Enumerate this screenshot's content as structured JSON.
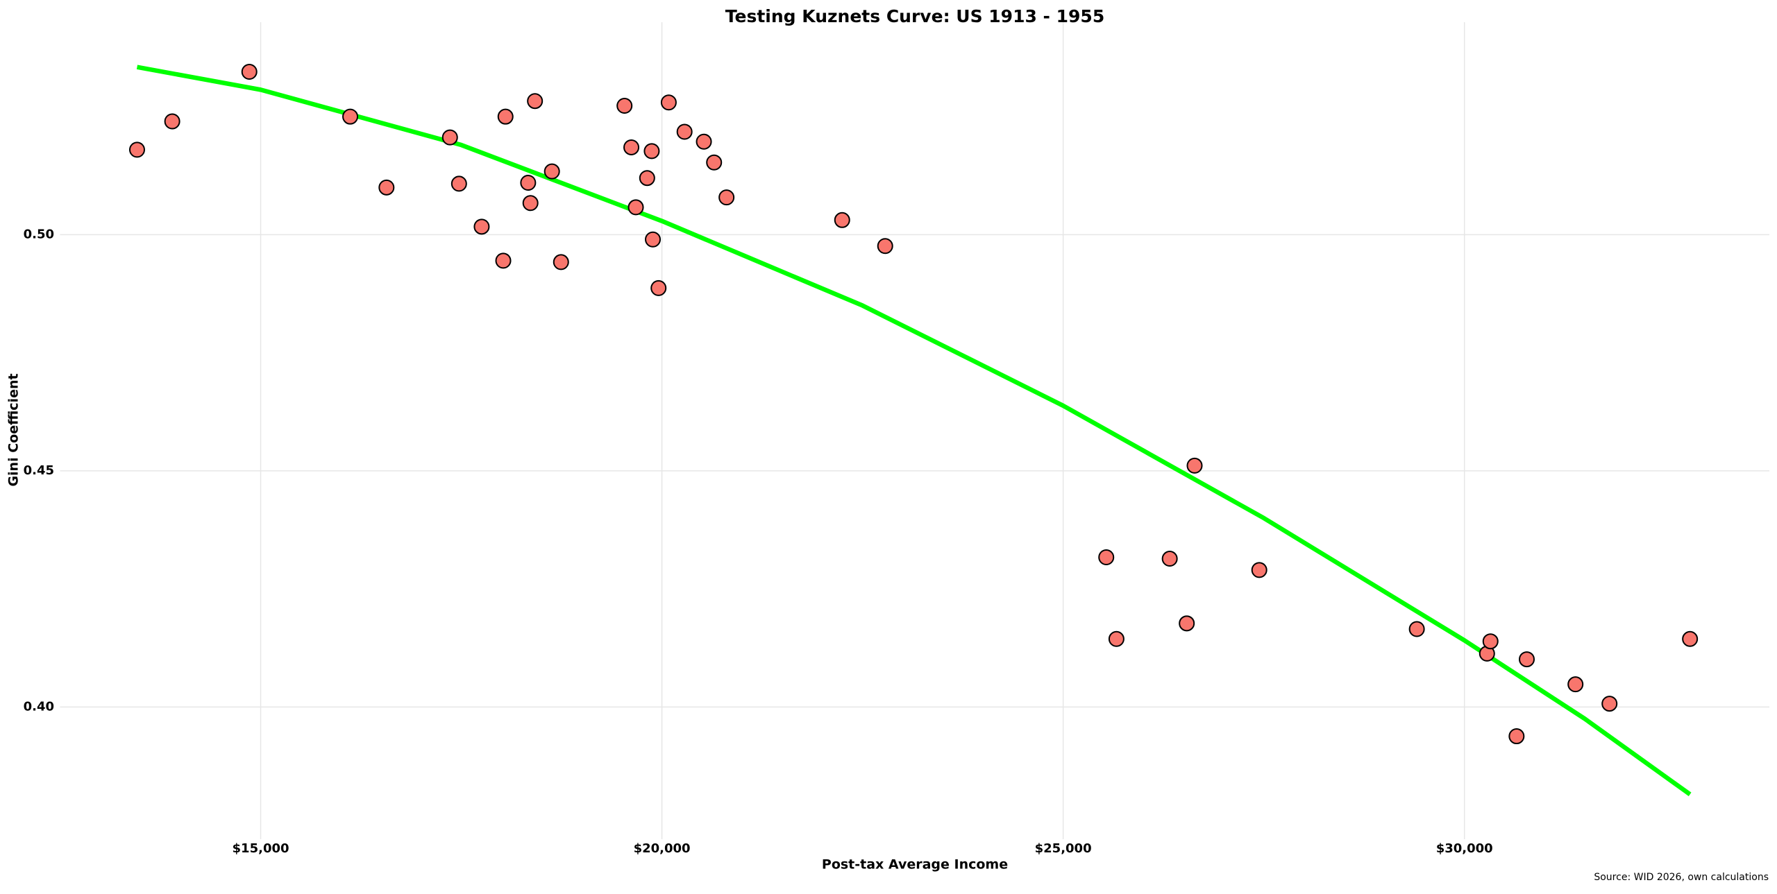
{
  "chart_data": {
    "type": "scatter",
    "title": "Testing Kuznets Curve: US 1913 - 1955",
    "x_label": "Post-tax Average Income",
    "y_label": "Gini Coefficient",
    "source": "Source: WID 2026, own calculations",
    "xlim": [
      12500,
      33800
    ],
    "ylim": [
      0.372,
      0.545
    ],
    "xticks": [
      {
        "value": 15000,
        "label": "$15,000"
      },
      {
        "value": 20000,
        "label": "$20,000"
      },
      {
        "value": 25000,
        "label": "$25,000"
      },
      {
        "value": 30000,
        "label": "$30,000"
      }
    ],
    "yticks": [
      {
        "value": 0.4,
        "label": "0.40"
      },
      {
        "value": 0.45,
        "label": "0.45"
      },
      {
        "value": 0.5,
        "label": "0.50"
      }
    ],
    "grid": true,
    "series": [
      {
        "type": "scatter",
        "color": "#f8766d",
        "x": [
          13460,
          13898,
          14859,
          16116,
          16568,
          17359,
          17472,
          17754,
          18023,
          18051,
          18333,
          18362,
          18418,
          18630,
          18743,
          19534,
          19619,
          19675,
          19816,
          19873,
          19887,
          19958,
          20085,
          20282,
          20523,
          20650,
          20805,
          22246,
          22782,
          25537,
          25664,
          26328,
          26540,
          26638,
          27444,
          29407,
          30282,
          30325,
          30650,
          30777,
          31384,
          31808,
          32811
        ],
        "values": [
          0.518,
          0.524,
          0.5345,
          0.525,
          0.51,
          0.5206,
          0.5108,
          0.5017,
          0.4945,
          0.525,
          0.511,
          0.5067,
          0.5283,
          0.5134,
          0.4942,
          0.5273,
          0.5185,
          0.5058,
          0.512,
          0.5177,
          0.499,
          0.4887,
          0.528,
          0.5218,
          0.5197,
          0.5153,
          0.5079,
          0.5031,
          0.4976,
          0.4317,
          0.4144,
          0.4314,
          0.4177,
          0.4511,
          0.429,
          0.4165,
          0.4113,
          0.4139,
          0.3938,
          0.4101,
          0.4048,
          0.4007,
          0.4144
        ]
      },
      {
        "type": "line",
        "color": "#00ff00",
        "x": [
          13460,
          15000,
          17500,
          20000,
          22500,
          25000,
          27500,
          30000,
          31500,
          32811
        ],
        "values": [
          0.5355,
          0.5307,
          0.519,
          0.5029,
          0.485,
          0.4638,
          0.44,
          0.4141,
          0.3975,
          0.3815
        ]
      }
    ]
  }
}
